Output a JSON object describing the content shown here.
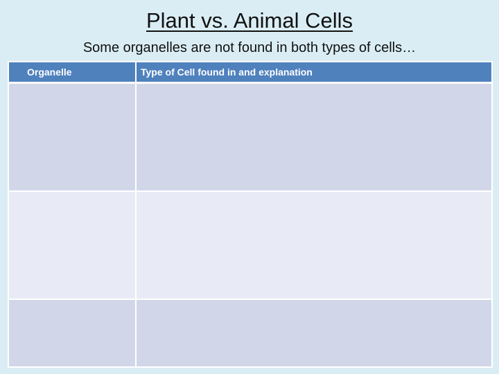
{
  "slide": {
    "title": "Plant vs. Animal Cells",
    "subtitle": "Some organelles are not found in both types of cells…"
  },
  "table": {
    "headers": [
      "Organelle",
      "Type of Cell found in and explanation"
    ],
    "rows": [
      [
        "",
        ""
      ],
      [
        "",
        ""
      ],
      [
        "",
        ""
      ]
    ]
  },
  "colors": {
    "background": "#daedf4",
    "header_fill": "#4f81bd",
    "row_dark": "#d1d7e9",
    "row_light": "#e8ebf5"
  }
}
